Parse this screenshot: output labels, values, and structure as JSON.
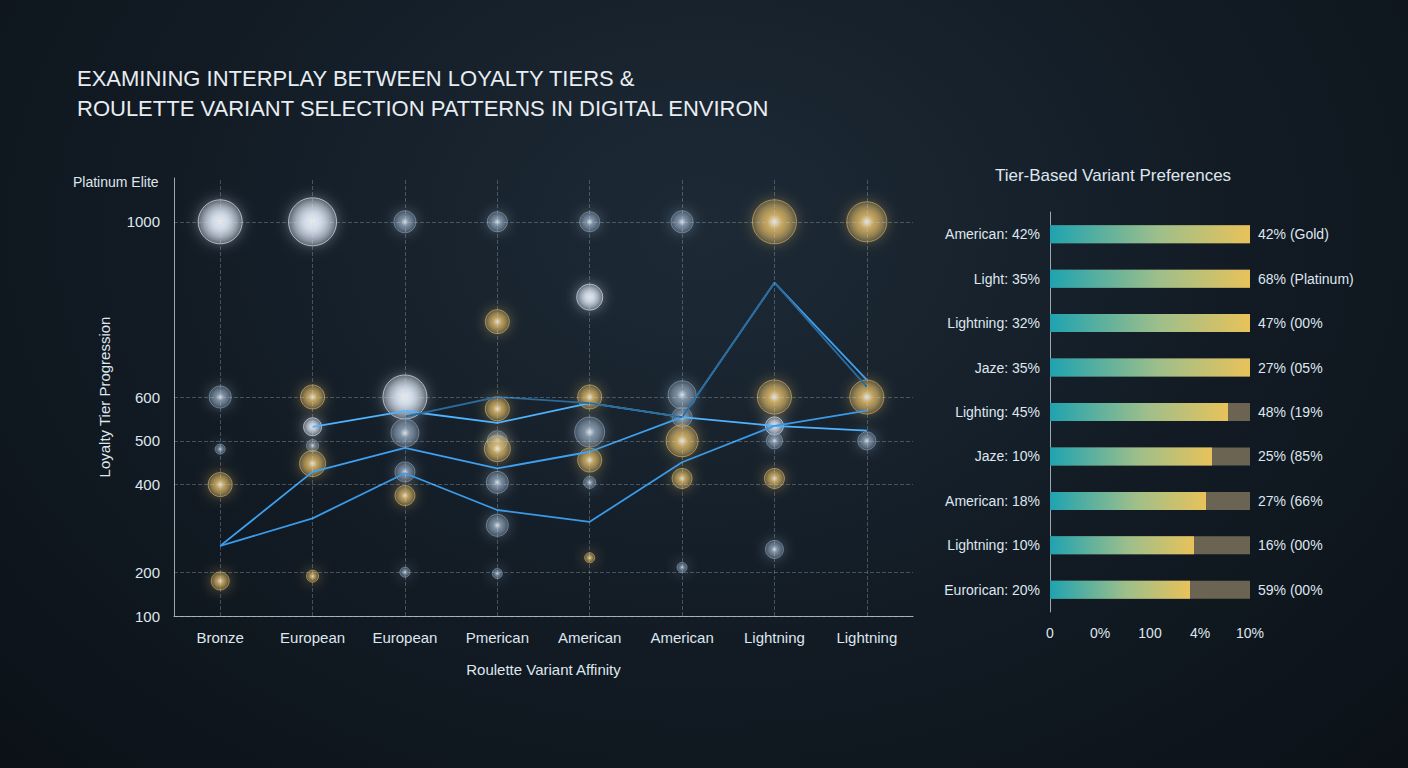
{
  "chart_data": [
    {
      "type": "scatter",
      "title": "EXAMINING INTERPLAY BETWEEN LOYALTY TIERS &\nROULETTE VARIANT SELECTION PATTERNS IN DIGITAL ENVIRON",
      "annotations": [
        "Platinum Elite"
      ],
      "xlabel": "Roulette Variant Affinity",
      "ylabel": "Loyalty Tier Progression",
      "categories": [
        "Bronze",
        "European",
        "European",
        "Pmerican",
        "American",
        "American",
        "Lightning",
        "Lightning"
      ],
      "ylim": [
        100,
        1100
      ],
      "yticks": [
        100,
        200,
        400,
        500,
        600,
        1000
      ],
      "grid": true,
      "series": [
        {
          "type": "scatter",
          "marker": "circle",
          "color": "#e8f2ff",
          "x": [
            0,
            1,
            1,
            2,
            4,
            6
          ],
          "values": [
            1000,
            1000,
            532,
            600,
            828,
            534
          ],
          "sizes": [
            44,
            48,
            18,
            44,
            26,
            18
          ]
        },
        {
          "type": "scatter",
          "marker": "circle",
          "color": "#8fa4ba",
          "x": [
            0,
            0,
            1,
            2,
            2,
            2,
            2,
            3,
            3,
            3,
            3,
            3,
            4,
            4,
            4,
            5,
            5,
            5,
            5,
            6,
            6,
            7
          ],
          "values": [
            600,
            481,
            489,
            1000,
            518,
            429,
            200,
            1000,
            500,
            405,
            307,
            197,
            1000,
            520,
            405,
            1000,
            605,
            554,
            211,
            500,
            252,
            500
          ],
          "sizes": [
            22,
            10,
            12,
            22,
            28,
            20,
            10,
            20,
            20,
            22,
            22,
            10,
            20,
            30,
            12,
            22,
            28,
            20,
            10,
            16,
            18,
            18
          ]
        },
        {
          "type": "scatter",
          "marker": "circle",
          "color": "#dcb766",
          "x": [
            0,
            0,
            1,
            1,
            1,
            2,
            3,
            3,
            3,
            4,
            4,
            4,
            5,
            5,
            6,
            6,
            6,
            7,
            7
          ],
          "values": [
            400,
            180,
            600,
            448,
            191,
            375,
            772,
            573,
            482,
            600,
            456,
            233,
            500,
            414,
            1000,
            600,
            414,
            1000,
            600
          ],
          "sizes": [
            24,
            18,
            24,
            26,
            12,
            20,
            24,
            24,
            26,
            24,
            24,
            10,
            32,
            20,
            44,
            34,
            20,
            40,
            34
          ]
        },
        {
          "type": "line",
          "color": "#4fb3ff",
          "values": [
            null,
            532,
            568,
            541,
            586,
            554,
            534,
            523
          ]
        },
        {
          "type": "line",
          "color": "#3da0f0",
          "values": [
            260,
            429,
            484,
            437,
            475,
            554,
            861,
            639
          ]
        },
        {
          "type": "line",
          "color": "#3a9ae8",
          "values": [
            260,
            323,
            426,
            342,
            315,
            451,
            534,
            569
          ]
        },
        {
          "type": "line",
          "color": "#2c6a99",
          "values": [
            null,
            null,
            555,
            600,
            586,
            554,
            861,
            623
          ]
        }
      ]
    },
    {
      "type": "bar",
      "orientation": "horizontal",
      "title": "Tier-Based Variant Preferences",
      "categories": [
        "American: 42%",
        "Light: 35%",
        "Lightning: 32%",
        "Jaze: 35%",
        "Lighting: 45%",
        "Jaze: 10%",
        "American: 18%",
        "Lightning: 10%",
        "Eurorican: 20%"
      ],
      "values": [
        100,
        100,
        100,
        100,
        89,
        81,
        78,
        72,
        70
      ],
      "end_labels": [
        "42% (Gold)",
        "68% (Platinum)",
        "47% (00%",
        "27% (05%",
        "48% (19%",
        "25% (85%",
        "27% (66%",
        "16% (00%",
        "59% (00%"
      ],
      "x_tick_labels": [
        "0",
        "0%",
        "100",
        "4%",
        "10%"
      ],
      "xlim": [
        0,
        100
      ],
      "color": "#e8c25a",
      "grid": false
    }
  ]
}
